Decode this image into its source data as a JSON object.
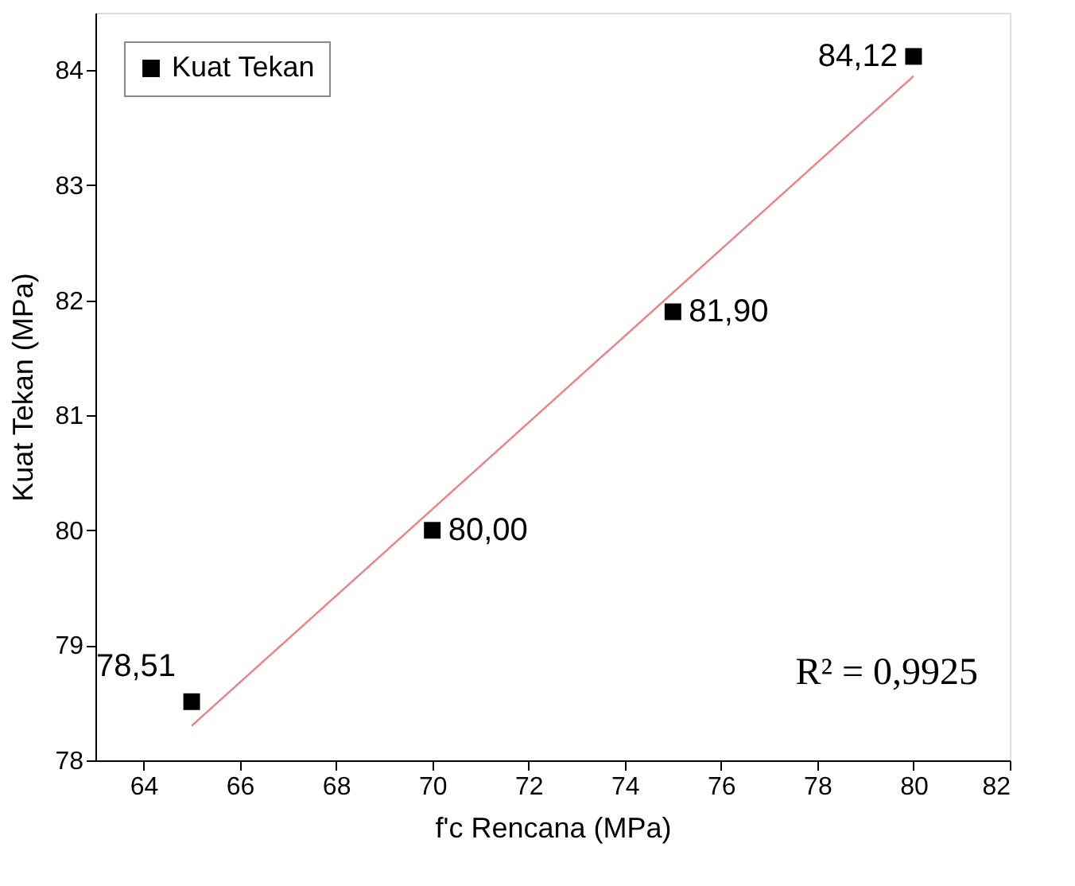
{
  "chart_data": {
    "type": "scatter",
    "xlabel": "f'c Rencana (MPa)",
    "ylabel": "Kuat Tekan (MPa)",
    "x": [
      65,
      70,
      75,
      80
    ],
    "series": [
      {
        "name": "Kuat Tekan",
        "color": "#000000",
        "marker": "square",
        "values": [
          78.51,
          80.0,
          81.9,
          84.12
        ],
        "value_labels": [
          "78,51",
          "80,00",
          "81,90",
          "84,12"
        ]
      },
      {
        "type": "line",
        "x": [
          65,
          80
        ],
        "color": "#f08080",
        "values": [
          78.3,
          83.95
        ]
      }
    ],
    "xlim": [
      63,
      82
    ],
    "xticks": [
      64,
      66,
      68,
      70,
      72,
      74,
      76,
      78,
      80,
      82
    ],
    "ylim": [
      78,
      84.5
    ],
    "yticks": [
      78,
      79,
      80,
      81,
      82,
      83,
      84
    ],
    "annotations": [
      "R² = 0,9925"
    ],
    "legend": "top left",
    "grid": false
  }
}
